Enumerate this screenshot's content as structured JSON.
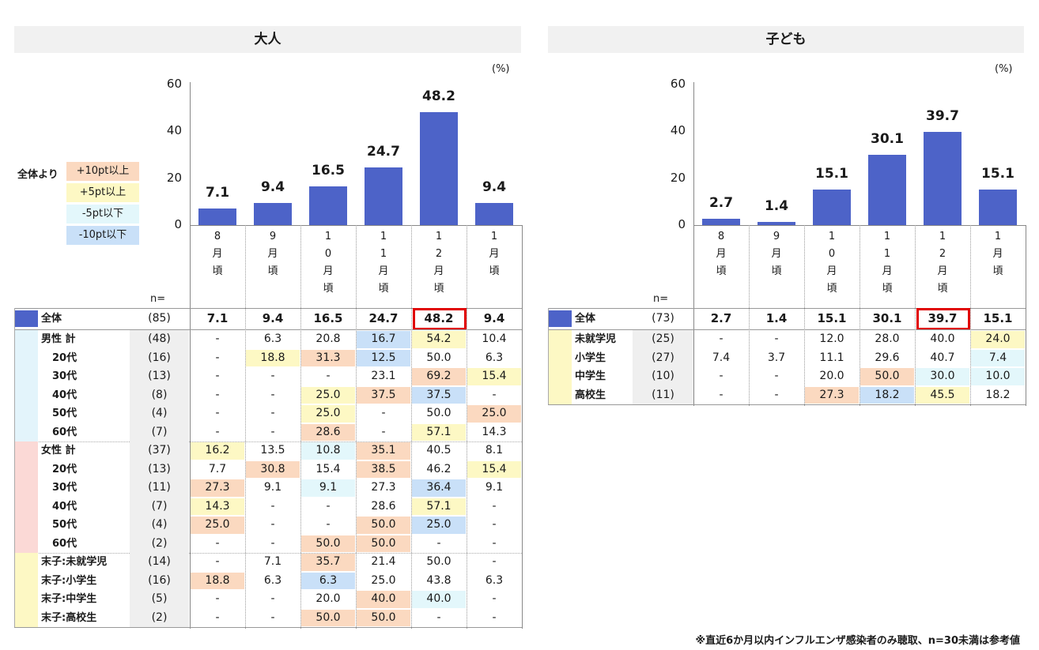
{
  "colors": {
    "bar": "#4d63c8",
    "p10": "#fbd9c0",
    "p5": "#fdf8c4",
    "m5": "#e3f7fb",
    "m10": "#c9e0f8",
    "total_marker": "#4d63c8",
    "male": "#e3f4fb",
    "female": "#fbd9d6",
    "child": "#fdf8c4"
  },
  "legend": {
    "label": "全体より",
    "items": [
      {
        "text": "+10pt以上",
        "color": "p10"
      },
      {
        "text": "+5pt以上",
        "color": "p5"
      },
      {
        "text": "-5pt以下",
        "color": "m5"
      },
      {
        "text": "-10pt以下",
        "color": "m10"
      }
    ]
  },
  "footnote": "※直近6か月以内インフルエンザ感染者のみ聴取、n=30未満は参考値",
  "chart_data": [
    {
      "type": "bar",
      "title": "大人",
      "unit": "(%)",
      "categories": [
        "8月頃",
        "9月頃",
        "10月頃",
        "11月頃",
        "12月頃",
        "1月頃"
      ],
      "category_chars": [
        [
          "8",
          "月",
          "頃"
        ],
        [
          "9",
          "月",
          "頃"
        ],
        [
          "1",
          "0",
          "月",
          "頃"
        ],
        [
          "1",
          "1",
          "月",
          "頃"
        ],
        [
          "1",
          "2",
          "月",
          "頃"
        ],
        [
          "1",
          "月",
          "頃"
        ]
      ],
      "values": [
        7.1,
        9.4,
        16.5,
        24.7,
        48.2,
        9.4
      ],
      "value_labels": [
        "7.1",
        "9.4",
        "16.5",
        "24.7",
        "48.2",
        "9.4"
      ],
      "ylim": [
        0,
        60
      ],
      "yticks": [
        "0",
        "20",
        "40",
        "60"
      ],
      "highlight_index": 4,
      "n_header": "n=",
      "total": {
        "label": "全体",
        "n": "(85)",
        "values": [
          "7.1",
          "9.4",
          "16.5",
          "24.7",
          "48.2",
          "9.4"
        ]
      },
      "groups": [
        {
          "color": "male",
          "rows": [
            {
              "label": "男性 計",
              "indent": false,
              "n": "(48)",
              "values": [
                "-",
                "6.3",
                "20.8",
                "16.7",
                "54.2",
                "10.4"
              ],
              "shades": [
                "",
                "",
                "",
                "m10",
                "p5",
                ""
              ]
            },
            {
              "label": "20代",
              "indent": true,
              "n": "(16)",
              "values": [
                "-",
                "18.8",
                "31.3",
                "12.5",
                "50.0",
                "6.3"
              ],
              "shades": [
                "",
                "p5",
                "p10",
                "m10",
                "",
                ""
              ]
            },
            {
              "label": "30代",
              "indent": true,
              "n": "(13)",
              "values": [
                "-",
                "-",
                "-",
                "23.1",
                "69.2",
                "15.4"
              ],
              "shades": [
                "",
                "",
                "",
                "",
                "p10",
                "p5"
              ]
            },
            {
              "label": "40代",
              "indent": true,
              "n": "(8)",
              "values": [
                "-",
                "-",
                "25.0",
                "37.5",
                "37.5",
                "-"
              ],
              "shades": [
                "",
                "",
                "p5",
                "p10",
                "m10",
                ""
              ]
            },
            {
              "label": "50代",
              "indent": true,
              "n": "(4)",
              "values": [
                "-",
                "-",
                "25.0",
                "-",
                "50.0",
                "25.0"
              ],
              "shades": [
                "",
                "",
                "p5",
                "",
                "",
                "p10"
              ]
            },
            {
              "label": "60代",
              "indent": true,
              "n": "(7)",
              "values": [
                "-",
                "-",
                "28.6",
                "-",
                "57.1",
                "14.3"
              ],
              "shades": [
                "",
                "",
                "p10",
                "",
                "p5",
                ""
              ]
            }
          ]
        },
        {
          "color": "female",
          "rows": [
            {
              "label": "女性 計",
              "indent": false,
              "n": "(37)",
              "values": [
                "16.2",
                "13.5",
                "10.8",
                "35.1",
                "40.5",
                "8.1"
              ],
              "shades": [
                "p5",
                "",
                "m5",
                "p10",
                "",
                ""
              ]
            },
            {
              "label": "20代",
              "indent": true,
              "n": "(13)",
              "values": [
                "7.7",
                "30.8",
                "15.4",
                "38.5",
                "46.2",
                "15.4"
              ],
              "shades": [
                "",
                "p10",
                "",
                "p10",
                "",
                "p5"
              ]
            },
            {
              "label": "30代",
              "indent": true,
              "n": "(11)",
              "values": [
                "27.3",
                "9.1",
                "9.1",
                "27.3",
                "36.4",
                "9.1"
              ],
              "shades": [
                "p10",
                "",
                "m5",
                "",
                "m10",
                ""
              ]
            },
            {
              "label": "40代",
              "indent": true,
              "n": "(7)",
              "values": [
                "14.3",
                "-",
                "-",
                "28.6",
                "57.1",
                "-"
              ],
              "shades": [
                "p5",
                "",
                "",
                "",
                "p5",
                ""
              ]
            },
            {
              "label": "50代",
              "indent": true,
              "n": "(4)",
              "values": [
                "25.0",
                "-",
                "-",
                "50.0",
                "25.0",
                "-"
              ],
              "shades": [
                "p10",
                "",
                "",
                "p10",
                "m10",
                ""
              ]
            },
            {
              "label": "60代",
              "indent": true,
              "n": "(2)",
              "values": [
                "-",
                "-",
                "50.0",
                "50.0",
                "-",
                "-"
              ],
              "shades": [
                "",
                "",
                "p10",
                "p10",
                "",
                ""
              ]
            }
          ]
        },
        {
          "color": "child",
          "rows": [
            {
              "label": "末子:未就学児",
              "indent": false,
              "n": "(14)",
              "values": [
                "-",
                "7.1",
                "35.7",
                "21.4",
                "50.0",
                "-"
              ],
              "shades": [
                "",
                "",
                "p10",
                "",
                "",
                ""
              ]
            },
            {
              "label": "末子:小学生",
              "indent": false,
              "n": "(16)",
              "values": [
                "18.8",
                "6.3",
                "6.3",
                "25.0",
                "43.8",
                "6.3"
              ],
              "shades": [
                "p10",
                "",
                "m10",
                "",
                "",
                ""
              ]
            },
            {
              "label": "末子:中学生",
              "indent": false,
              "n": "(5)",
              "values": [
                "-",
                "-",
                "20.0",
                "40.0",
                "40.0",
                "-"
              ],
              "shades": [
                "",
                "",
                "",
                "p10",
                "m5",
                ""
              ]
            },
            {
              "label": "末子:高校生",
              "indent": false,
              "n": "(2)",
              "values": [
                "-",
                "-",
                "50.0",
                "50.0",
                "-",
                "-"
              ],
              "shades": [
                "",
                "",
                "p10",
                "p10",
                "",
                ""
              ]
            }
          ]
        }
      ]
    },
    {
      "type": "bar",
      "title": "子ども",
      "unit": "(%)",
      "categories": [
        "8月頃",
        "9月頃",
        "10月頃",
        "11月頃",
        "12月頃",
        "1月頃"
      ],
      "category_chars": [
        [
          "8",
          "月",
          "頃"
        ],
        [
          "9",
          "月",
          "頃"
        ],
        [
          "1",
          "0",
          "月",
          "頃"
        ],
        [
          "1",
          "1",
          "月",
          "頃"
        ],
        [
          "1",
          "2",
          "月",
          "頃"
        ],
        [
          "1",
          "月",
          "頃"
        ]
      ],
      "values": [
        2.7,
        1.4,
        15.1,
        30.1,
        39.7,
        15.1
      ],
      "value_labels": [
        "2.7",
        "1.4",
        "15.1",
        "30.1",
        "39.7",
        "15.1"
      ],
      "ylim": [
        0,
        60
      ],
      "yticks": [
        "0",
        "20",
        "40",
        "60"
      ],
      "highlight_index": 4,
      "n_header": "n=",
      "total": {
        "label": "全体",
        "n": "(73)",
        "values": [
          "2.7",
          "1.4",
          "15.1",
          "30.1",
          "39.7",
          "15.1"
        ]
      },
      "groups": [
        {
          "color": "child",
          "rows": [
            {
              "label": "未就学児",
              "indent": false,
              "n": "(25)",
              "values": [
                "-",
                "-",
                "12.0",
                "28.0",
                "40.0",
                "24.0"
              ],
              "shades": [
                "",
                "",
                "",
                "",
                "",
                "p5"
              ]
            },
            {
              "label": "小学生",
              "indent": false,
              "n": "(27)",
              "values": [
                "7.4",
                "3.7",
                "11.1",
                "29.6",
                "40.7",
                "7.4"
              ],
              "shades": [
                "",
                "",
                "",
                "",
                "",
                "m5"
              ]
            },
            {
              "label": "中学生",
              "indent": false,
              "n": "(10)",
              "values": [
                "-",
                "-",
                "20.0",
                "50.0",
                "30.0",
                "10.0"
              ],
              "shades": [
                "",
                "",
                "",
                "p10",
                "m5",
                "m5"
              ]
            },
            {
              "label": "高校生",
              "indent": false,
              "n": "(11)",
              "values": [
                "-",
                "-",
                "27.3",
                "18.2",
                "45.5",
                "18.2"
              ],
              "shades": [
                "",
                "",
                "p10",
                "m10",
                "p5",
                ""
              ]
            }
          ]
        }
      ]
    }
  ]
}
